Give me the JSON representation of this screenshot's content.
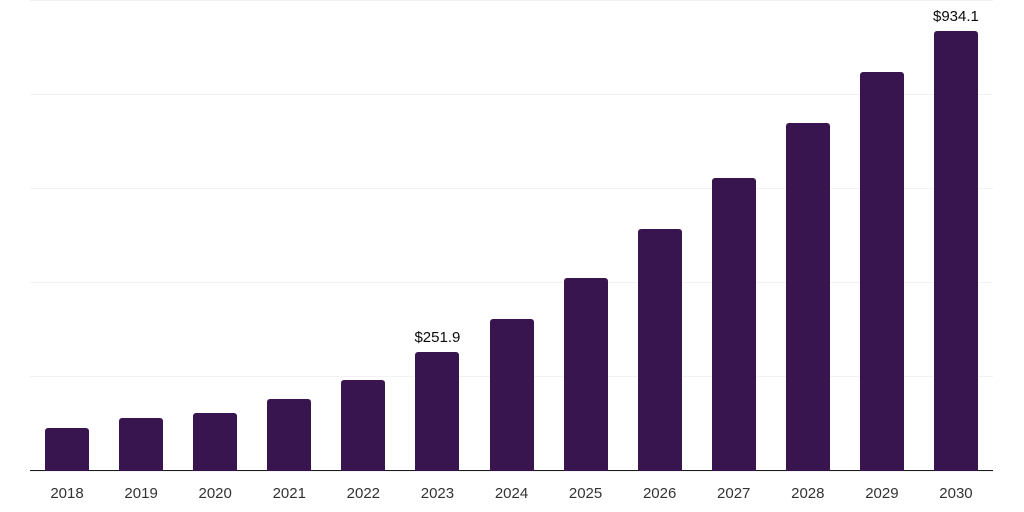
{
  "chart_data": {
    "type": "bar",
    "categories": [
      "2018",
      "2019",
      "2020",
      "2021",
      "2022",
      "2023",
      "2024",
      "2025",
      "2026",
      "2027",
      "2028",
      "2029",
      "2030"
    ],
    "values": [
      91,
      111,
      123,
      152,
      192,
      251.9,
      321,
      409,
      513,
      621,
      738,
      846,
      934.1
    ],
    "data_labels": {
      "2023": "$251.9",
      "2030": "$934.1"
    },
    "value_prefix": "$",
    "ylim": [
      0,
      1000
    ],
    "gridline_values": [
      0,
      200,
      400,
      600,
      800,
      1000
    ],
    "grid": true,
    "legend": false,
    "colors": {
      "bar": "#38154f",
      "gridline": "#f2f2f3",
      "axis_line": "#1b1b1b",
      "tick_label": "#333333",
      "data_label": "#0a0a0a",
      "background": "#ffffff"
    }
  }
}
